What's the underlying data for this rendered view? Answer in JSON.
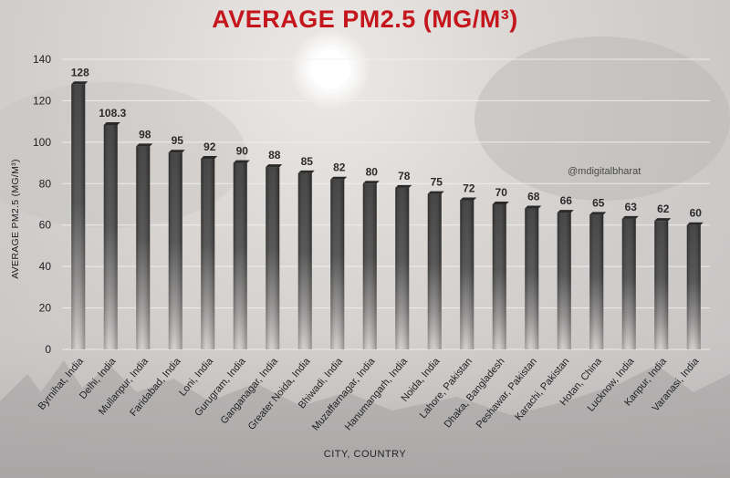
{
  "chart_data": {
    "type": "bar",
    "title": "AVERAGE PM2.5 (MG/M³)",
    "xlabel": "CITY, COUNTRY",
    "ylabel": "AVERAGE PM2.5 (MG/M³)",
    "ylim": [
      0,
      140
    ],
    "yticks": [
      0,
      20,
      40,
      60,
      80,
      100,
      120,
      140
    ],
    "grid": true,
    "categories": [
      "Byrnihat, India",
      "Delhi, India",
      "Mullanpur, India",
      "Faridabad, India",
      "Loni, India",
      "Gurugram, India",
      "Ganganagar, India",
      "Greater Noida, India",
      "Bhiwadi, India",
      "Muzaffarnagar, India",
      "Hanumangarh, India",
      "Noida, India",
      "Lahore, Pakistan",
      "Dhaka, Bangladesh",
      "Peshawar, Pakistan",
      "Karachi, Pakistan",
      "Hotan, China",
      "Lucknow, India",
      "Kanpur, India",
      "Varanasi, India"
    ],
    "values": [
      128,
      108.3,
      98,
      95,
      92,
      90,
      88,
      85,
      82,
      80,
      78,
      75,
      72,
      70,
      68,
      66,
      65,
      63,
      62,
      60
    ],
    "data_labels": [
      "128",
      "108.3",
      "98",
      "95",
      "92",
      "90",
      "88",
      "85",
      "82",
      "80",
      "78",
      "75",
      "72",
      "70",
      "68",
      "66",
      "65",
      "63",
      "62",
      "60"
    ]
  },
  "watermark": "@mdigitalbharat",
  "colors": {
    "title": "#c4161c",
    "bar_dark": "#3c3c3c",
    "bar_fade": "#cfcccb",
    "grid": "#f2f0ee"
  }
}
